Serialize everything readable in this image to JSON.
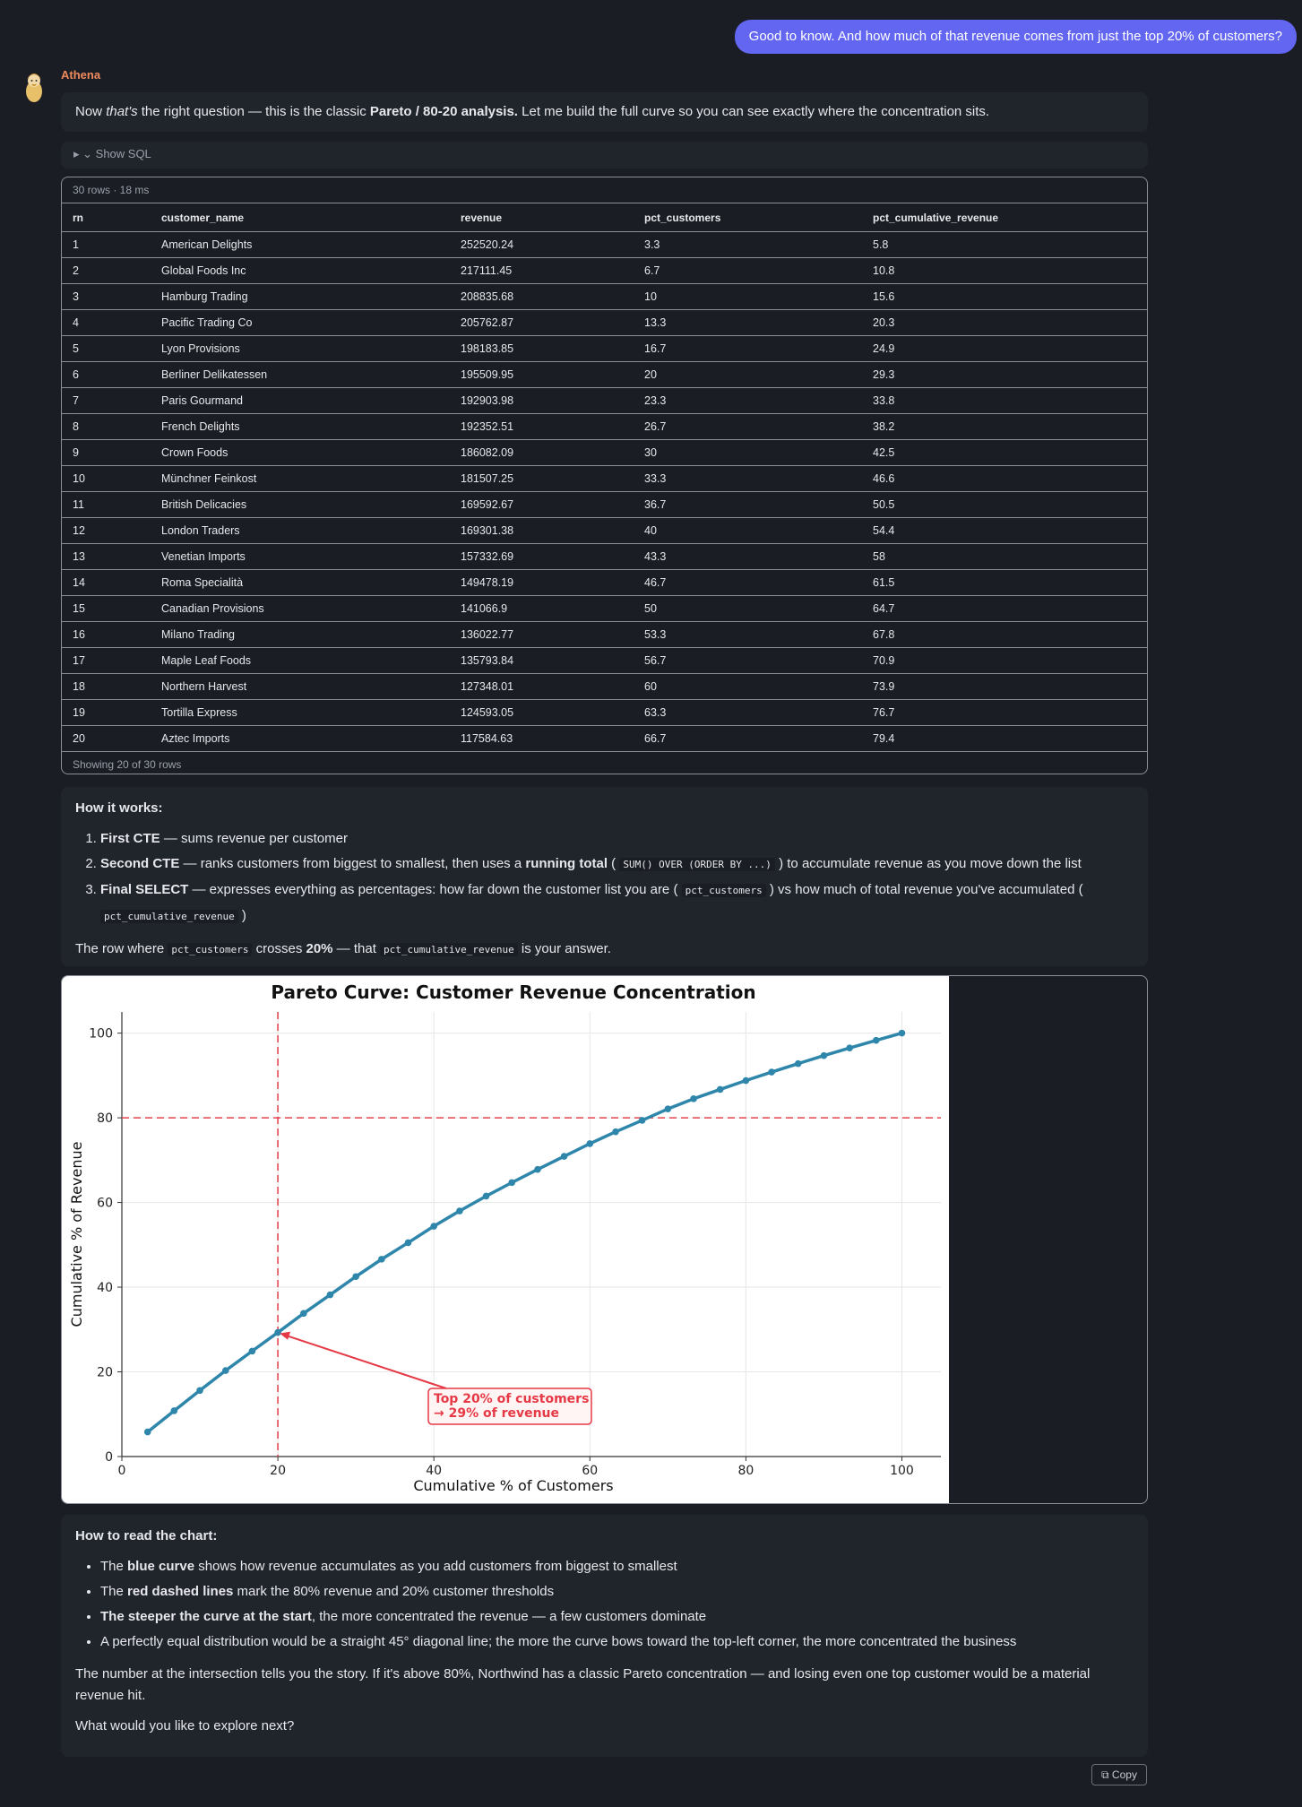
{
  "user_message": "Good to know. And how much of that revenue comes from just the top 20% of customers?",
  "agent": {
    "name": "Athena"
  },
  "intro": {
    "p1": "Now ",
    "p2": "that's",
    "p3": " the right question — this is the classic ",
    "p4": "Pareto / 80-20 analysis.",
    "p5": " Let me build the full curve so you can see exactly where the concentration sits."
  },
  "sql_toggle": "▸ ⌄ Show SQL",
  "table": {
    "meta": "30 rows · 18 ms",
    "columns": [
      "rn",
      "customer_name",
      "revenue",
      "pct_customers",
      "pct_cumulative_revenue"
    ],
    "rows": [
      [
        "1",
        "American Delights",
        "252520.24",
        "3.3",
        "5.8"
      ],
      [
        "2",
        "Global Foods Inc",
        "217111.45",
        "6.7",
        "10.8"
      ],
      [
        "3",
        "Hamburg Trading",
        "208835.68",
        "10",
        "15.6"
      ],
      [
        "4",
        "Pacific Trading Co",
        "205762.87",
        "13.3",
        "20.3"
      ],
      [
        "5",
        "Lyon Provisions",
        "198183.85",
        "16.7",
        "24.9"
      ],
      [
        "6",
        "Berliner Delikatessen",
        "195509.95",
        "20",
        "29.3"
      ],
      [
        "7",
        "Paris Gourmand",
        "192903.98",
        "23.3",
        "33.8"
      ],
      [
        "8",
        "French Delights",
        "192352.51",
        "26.7",
        "38.2"
      ],
      [
        "9",
        "Crown Foods",
        "186082.09",
        "30",
        "42.5"
      ],
      [
        "10",
        "Münchner Feinkost",
        "181507.25",
        "33.3",
        "46.6"
      ],
      [
        "11",
        "British Delicacies",
        "169592.67",
        "36.7",
        "50.5"
      ],
      [
        "12",
        "London Traders",
        "169301.38",
        "40",
        "54.4"
      ],
      [
        "13",
        "Venetian Imports",
        "157332.69",
        "43.3",
        "58"
      ],
      [
        "14",
        "Roma Specialità",
        "149478.19",
        "46.7",
        "61.5"
      ],
      [
        "15",
        "Canadian Provisions",
        "141066.9",
        "50",
        "64.7"
      ],
      [
        "16",
        "Milano Trading",
        "136022.77",
        "53.3",
        "67.8"
      ],
      [
        "17",
        "Maple Leaf Foods",
        "135793.84",
        "56.7",
        "70.9"
      ],
      [
        "18",
        "Northern Harvest",
        "127348.01",
        "60",
        "73.9"
      ],
      [
        "19",
        "Tortilla Express",
        "124593.05",
        "63.3",
        "76.7"
      ],
      [
        "20",
        "Aztec Imports",
        "117584.63",
        "66.7",
        "79.4"
      ]
    ],
    "footer": "Showing 20 of 30 rows"
  },
  "how": {
    "heading": "How it works:",
    "s1_b": "First CTE",
    "s1_t": " — sums revenue per customer",
    "s2_b": "Second CTE",
    "s2_t": " — ranks customers from biggest to smallest, then uses a ",
    "s2_b2": "running total",
    "s2_t2": " ( ",
    "s2_code": "SUM() OVER (ORDER BY ...)",
    "s2_t3": " ) to accumulate revenue as you move down the list",
    "s3_b": "Final SELECT",
    "s3_t": " — expresses everything as percentages: how far down the customer list you are ( ",
    "s3_code": "pct_customers",
    "s3_t2": " ) vs how much of total revenue you've accumulated ( ",
    "s3_code2": "pct_cumulative_revenue",
    "s3_t3": " )",
    "f1": "The row where ",
    "f_code": "pct_customers",
    "f2": " crosses ",
    "f_b": "20%",
    "f3": " — that ",
    "f_code2": "pct_cumulative_revenue",
    "f4": " is your answer."
  },
  "chart_data": {
    "type": "line",
    "title": "Pareto Curve: Customer Revenue Concentration",
    "xlabel": "Cumulative % of Customers",
    "ylabel": "Cumulative % of Revenue",
    "xlim": [
      0,
      105
    ],
    "ylim": [
      0,
      105
    ],
    "xticks": [
      0,
      20,
      40,
      60,
      80,
      100
    ],
    "yticks": [
      0,
      20,
      40,
      60,
      80,
      100
    ],
    "grid": true,
    "x": [
      3.3,
      6.7,
      10,
      13.3,
      16.7,
      20,
      23.3,
      26.7,
      30,
      33.3,
      36.7,
      40,
      43.3,
      46.7,
      50,
      53.3,
      56.7,
      60,
      63.3,
      66.7,
      70,
      73.3,
      76.7,
      80,
      83.3,
      86.7,
      90,
      93.3,
      96.7,
      100
    ],
    "y": [
      5.8,
      10.8,
      15.6,
      20.3,
      24.9,
      29.3,
      33.8,
      38.2,
      42.5,
      46.6,
      50.5,
      54.4,
      58,
      61.5,
      64.7,
      67.8,
      70.9,
      73.9,
      76.7,
      79.4,
      82.1,
      84.5,
      86.7,
      88.8,
      90.8,
      92.8,
      94.7,
      96.5,
      98.3,
      100
    ],
    "reference_lines": {
      "vertical_x": 20,
      "horizontal_y": 80
    },
    "annotation": {
      "line1": "Top 20% of customers",
      "line2": "→ 29% of revenue",
      "x": 20,
      "y": 29.3
    },
    "colors": {
      "line": "#2e86ab",
      "reference": "#e63946"
    }
  },
  "read": {
    "heading": "How to read the chart:",
    "b1_a": "The ",
    "b1_b": "blue curve",
    "b1_c": " shows how revenue accumulates as you add customers from biggest to smallest",
    "b2_a": "The ",
    "b2_b": "red dashed lines",
    "b2_c": " mark the 80% revenue and 20% customer thresholds",
    "b3_b": "The steeper the curve at the start",
    "b3_c": ", the more concentrated the revenue — a few customers dominate",
    "b4": "A perfectly equal distribution would be a straight 45° diagonal line; the more the curve bows toward the top-left corner, the more concentrated the business",
    "p1": "The number at the intersection tells you the story. If it's above 80%, Northwind has a classic Pareto concentration — and losing even one top customer would be a material revenue hit.",
    "p2": "What would you like to explore next?"
  },
  "copy_label": "⧉ Copy",
  "colors": {
    "accent": "#6366f1",
    "agent_name": "#f08a5d",
    "background": "#1a1d23",
    "card": "#20242b"
  }
}
